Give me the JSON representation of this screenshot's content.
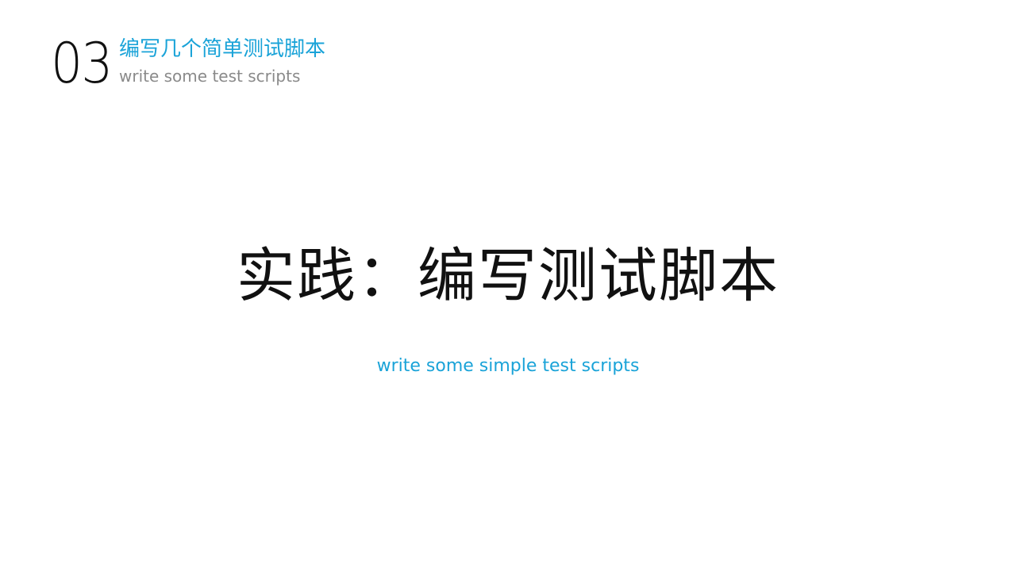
{
  "section": {
    "number": "03",
    "title_zh": "编写几个简单测试脚本",
    "title_en": "write some test scripts"
  },
  "main": {
    "title": "实践：编写测试脚本",
    "subtitle": "write some simple test scripts"
  },
  "colors": {
    "accent": "#1aa3d8",
    "text_dark": "#111111",
    "text_muted": "#8a8a8a",
    "background": "#ffffff"
  }
}
